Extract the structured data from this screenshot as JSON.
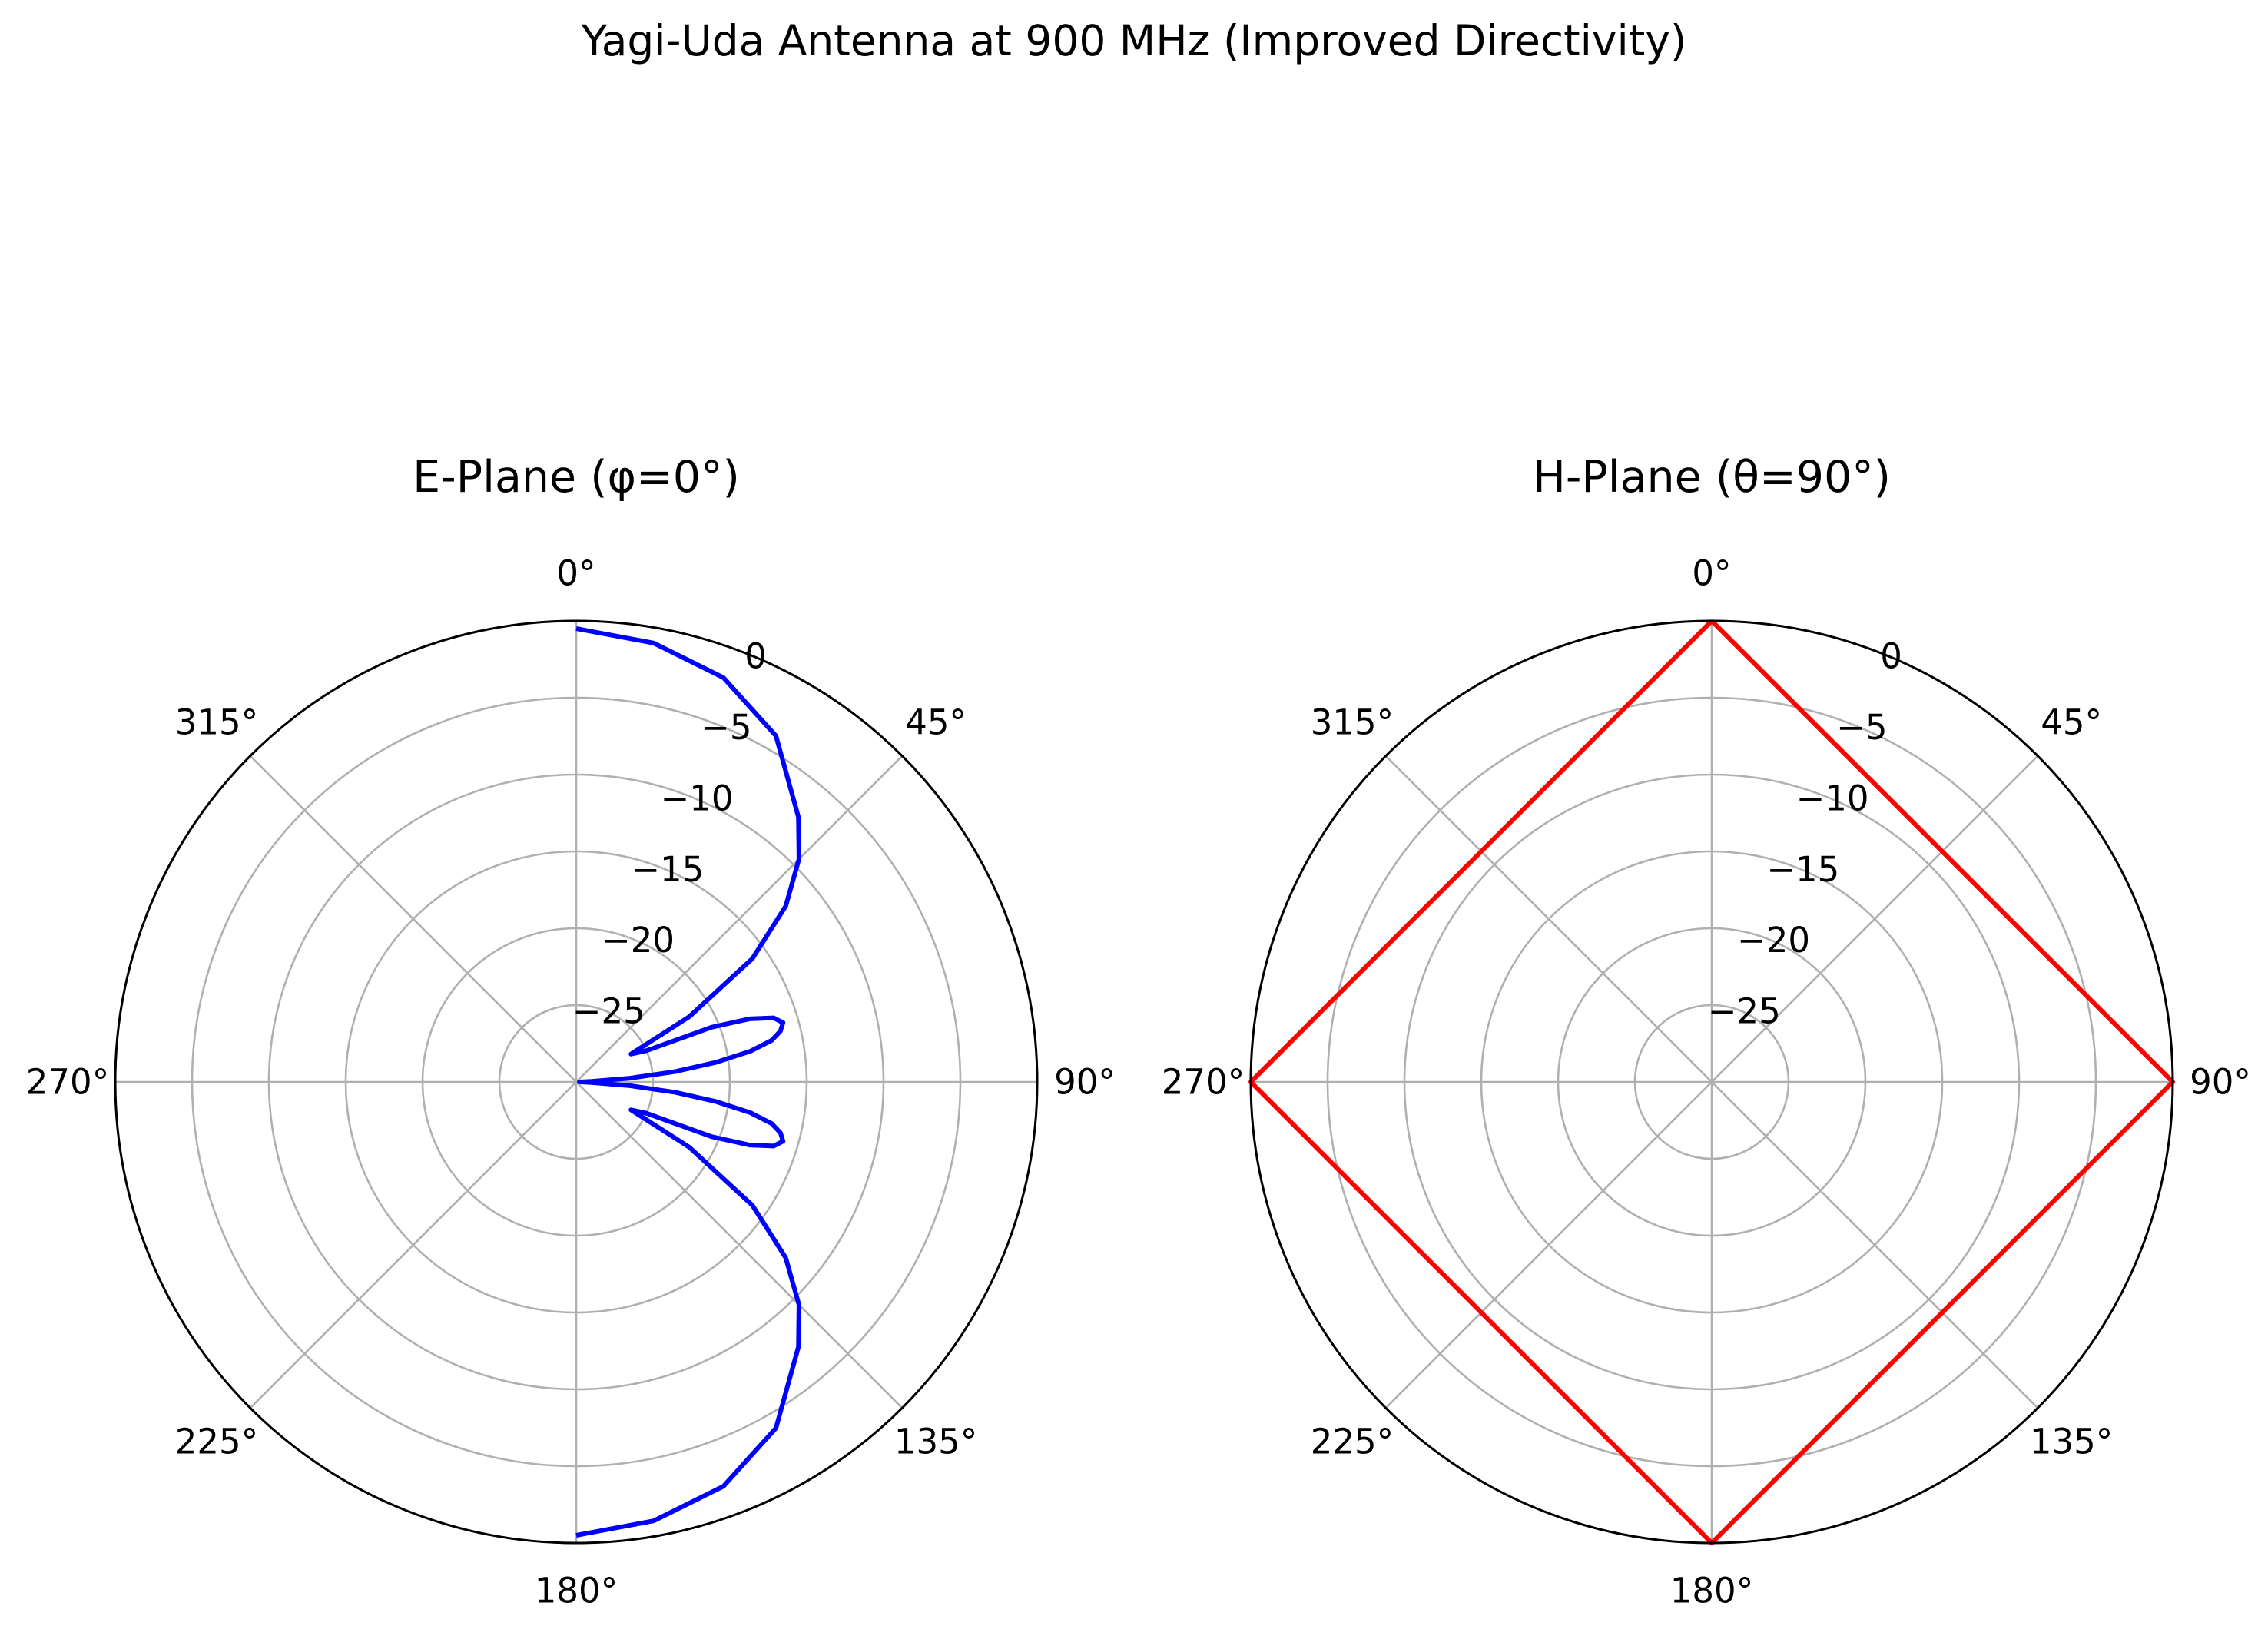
{
  "figure": {
    "title": "Yagi-Uda Antenna at 900 MHz (Improved Directivity)"
  },
  "chart_data": [
    {
      "type": "line",
      "projection": "polar",
      "title": "E-Plane (φ=0°)",
      "theta_zero_location": "top",
      "theta_direction": "clockwise",
      "angle_tick_labels": [
        "0°",
        "45°",
        "90°",
        "135°",
        "180°",
        "225°",
        "270°",
        "315°"
      ],
      "radial_tick_values": [
        0,
        -5,
        -10,
        -15,
        -20,
        -25
      ],
      "radial_tick_labels": [
        "0",
        "−5",
        "−10",
        "−15",
        "−20",
        "−25"
      ],
      "rlim": [
        -30,
        0
      ],
      "grid": true,
      "series": [
        {
          "color": "#0000ff",
          "theta_deg": [
            0,
            10,
            20,
            30,
            40,
            45,
            50,
            55,
            60,
            63,
            66,
            68,
            70,
            72,
            74,
            76,
            78,
            80,
            82,
            84,
            86,
            88,
            89.5,
            90.5,
            92,
            94,
            96,
            98,
            100,
            102,
            104,
            106,
            108,
            110,
            112,
            114,
            117,
            120,
            125,
            130,
            135,
            140,
            150,
            160,
            170,
            180
          ],
          "gain_db": [
            -0.5,
            -1.0,
            -2.0,
            -4.0,
            -7.5,
            -9.5,
            -12.2,
            -16.0,
            -21.5,
            -26.0,
            -25.0,
            -20.5,
            -18.0,
            -16.5,
            -16.0,
            -16.3,
            -17.0,
            -18.5,
            -20.8,
            -23.5,
            -26.5,
            -29.0,
            -29.8,
            -29.8,
            -29.0,
            -26.5,
            -23.5,
            -20.8,
            -18.5,
            -17.0,
            -16.3,
            -16.0,
            -16.5,
            -18.0,
            -20.5,
            -25.0,
            -26.0,
            -21.5,
            -16.0,
            -12.2,
            -9.5,
            -7.5,
            -4.0,
            -2.0,
            -1.0,
            -0.5
          ]
        }
      ]
    },
    {
      "type": "line",
      "projection": "polar",
      "title": "H-Plane (θ=90°)",
      "theta_zero_location": "top",
      "theta_direction": "clockwise",
      "angle_tick_labels": [
        "0°",
        "45°",
        "90°",
        "135°",
        "180°",
        "225°",
        "270°",
        "315°"
      ],
      "radial_tick_values": [
        0,
        -5,
        -10,
        -15,
        -20,
        -25
      ],
      "radial_tick_labels": [
        "0",
        "−5",
        "−10",
        "−15",
        "−20",
        "−25"
      ],
      "rlim": [
        -30,
        0
      ],
      "grid": true,
      "series": [
        {
          "color": "#ff0000",
          "theta_deg": [
            0,
            90,
            180,
            270,
            360
          ],
          "gain_db": [
            0,
            0,
            0,
            0,
            0
          ]
        }
      ]
    }
  ]
}
